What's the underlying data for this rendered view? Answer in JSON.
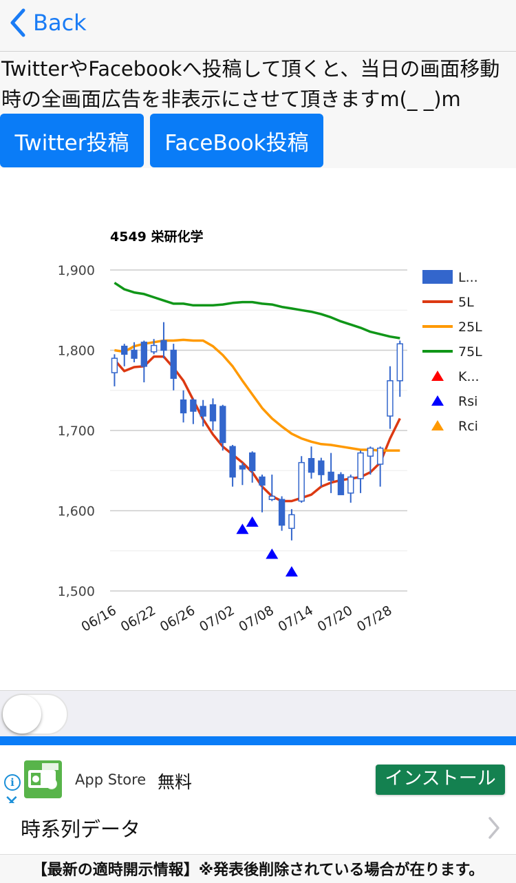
{
  "nav": {
    "back_label": "Back"
  },
  "notice_text": "TwitterやFacebookへ投稿して頂くと、当日の画面移動時の全画面広告を非表示にさせて頂きますm(_ _)m",
  "share_buttons": {
    "twitter": "Twitter投稿",
    "facebook": "FaceBook投稿"
  },
  "chart_data": {
    "type": "candlestick",
    "title": "4549 栄研化学",
    "ylim": [
      1500,
      1900
    ],
    "yticks": [
      "1,900",
      "1,800",
      "1,700",
      "1,600",
      "1,500"
    ],
    "ytick_values": [
      1900,
      1800,
      1700,
      1600,
      1500
    ],
    "x_tick_labels": [
      "06/16",
      "06/22",
      "06/26",
      "07/02",
      "07/08",
      "07/14",
      "07/20",
      "07/28"
    ],
    "x_tick_index": [
      0,
      4,
      8,
      12,
      16,
      20,
      24,
      28
    ],
    "grid": true,
    "legend_position": "right",
    "legend": [
      {
        "label": "L...",
        "color": "#3366cc",
        "shape": "box"
      },
      {
        "label": "5L",
        "color": "#dc3912",
        "shape": "line"
      },
      {
        "label": "25L",
        "color": "#ff9900",
        "shape": "line"
      },
      {
        "label": "75L",
        "color": "#109618",
        "shape": "line"
      },
      {
        "label": "K...",
        "color": "#ff0000",
        "shape": "triangle"
      },
      {
        "label": "Rsi",
        "color": "#0000ff",
        "shape": "triangle"
      },
      {
        "label": "Rci",
        "color": "#ff9900",
        "shape": "triangle"
      }
    ],
    "candles": [
      {
        "o": 1772,
        "h": 1795,
        "l": 1755,
        "c": 1790
      },
      {
        "o": 1805,
        "h": 1808,
        "l": 1780,
        "c": 1795
      },
      {
        "o": 1800,
        "h": 1810,
        "l": 1785,
        "c": 1790
      },
      {
        "o": 1810,
        "h": 1812,
        "l": 1760,
        "c": 1780
      },
      {
        "o": 1798,
        "h": 1814,
        "l": 1795,
        "c": 1806
      },
      {
        "o": 1812,
        "h": 1835,
        "l": 1790,
        "c": 1800
      },
      {
        "o": 1800,
        "h": 1808,
        "l": 1750,
        "c": 1765
      },
      {
        "o": 1738,
        "h": 1750,
        "l": 1710,
        "c": 1722
      },
      {
        "o": 1738,
        "h": 1740,
        "l": 1708,
        "c": 1724
      },
      {
        "o": 1730,
        "h": 1738,
        "l": 1705,
        "c": 1718
      },
      {
        "o": 1732,
        "h": 1740,
        "l": 1700,
        "c": 1712
      },
      {
        "o": 1730,
        "h": 1732,
        "l": 1675,
        "c": 1685
      },
      {
        "o": 1680,
        "h": 1682,
        "l": 1630,
        "c": 1642
      },
      {
        "o": 1656,
        "h": 1660,
        "l": 1632,
        "c": 1652
      },
      {
        "o": 1672,
        "h": 1674,
        "l": 1635,
        "c": 1650
      },
      {
        "o": 1642,
        "h": 1645,
        "l": 1598,
        "c": 1632
      },
      {
        "o": 1614,
        "h": 1645,
        "l": 1612,
        "c": 1618
      },
      {
        "o": 1614,
        "h": 1618,
        "l": 1575,
        "c": 1582
      },
      {
        "o": 1578,
        "h": 1602,
        "l": 1563,
        "c": 1595
      },
      {
        "o": 1612,
        "h": 1668,
        "l": 1610,
        "c": 1660
      },
      {
        "o": 1665,
        "h": 1680,
        "l": 1640,
        "c": 1648
      },
      {
        "o": 1662,
        "h": 1666,
        "l": 1630,
        "c": 1645
      },
      {
        "o": 1648,
        "h": 1672,
        "l": 1622,
        "c": 1638
      },
      {
        "o": 1645,
        "h": 1648,
        "l": 1620,
        "c": 1620
      },
      {
        "o": 1622,
        "h": 1645,
        "l": 1610,
        "c": 1642
      },
      {
        "o": 1640,
        "h": 1675,
        "l": 1622,
        "c": 1672
      },
      {
        "o": 1668,
        "h": 1680,
        "l": 1645,
        "c": 1678
      },
      {
        "o": 1658,
        "h": 1680,
        "l": 1630,
        "c": 1678
      },
      {
        "o": 1718,
        "h": 1780,
        "l": 1702,
        "c": 1762
      },
      {
        "o": 1762,
        "h": 1812,
        "l": 1742,
        "c": 1808
      }
    ],
    "series": [
      {
        "name": "5L",
        "values": [
          1788,
          1774,
          1779,
          1780,
          1792,
          1792,
          1778,
          1762,
          1738,
          1714,
          1695,
          1680,
          1670,
          1660,
          1648,
          1630,
          1618,
          1612,
          1612,
          1616,
          1620,
          1630,
          1635,
          1638,
          1640,
          1642,
          1648,
          1660,
          1690,
          1715
        ]
      },
      {
        "name": "25L",
        "values": [
          1800,
          1798,
          1805,
          1808,
          1810,
          1812,
          1812,
          1813,
          1812,
          1812,
          1805,
          1794,
          1780,
          1762,
          1745,
          1728,
          1715,
          1705,
          1696,
          1690,
          1686,
          1683,
          1682,
          1680,
          1678,
          1676,
          1676,
          1675,
          1675,
          1675
        ]
      },
      {
        "name": "75L",
        "values": [
          1884,
          1876,
          1872,
          1870,
          1866,
          1862,
          1858,
          1858,
          1856,
          1856,
          1856,
          1857,
          1859,
          1860,
          1860,
          1858,
          1857,
          1854,
          1852,
          1850,
          1848,
          1845,
          1841,
          1836,
          1832,
          1828,
          1823,
          1820,
          1817,
          1815
        ]
      }
    ],
    "markers": [
      {
        "series": "Rsi",
        "index": 13,
        "value": 1577
      },
      {
        "series": "Rsi",
        "index": 14,
        "value": 1586
      },
      {
        "series": "Rsi",
        "index": 16,
        "value": 1546
      },
      {
        "series": "Rsi",
        "index": 18,
        "value": 1524
      }
    ]
  },
  "ad": {
    "store": "App Store",
    "price": "無料",
    "install": "インストール",
    "info_glyph": "i",
    "close_glyph": "✕"
  },
  "list": {
    "timeseries_label": "時系列データ"
  },
  "footer_note": "【最新の適時開示情報】※発表後削除されている場合が在ります。"
}
